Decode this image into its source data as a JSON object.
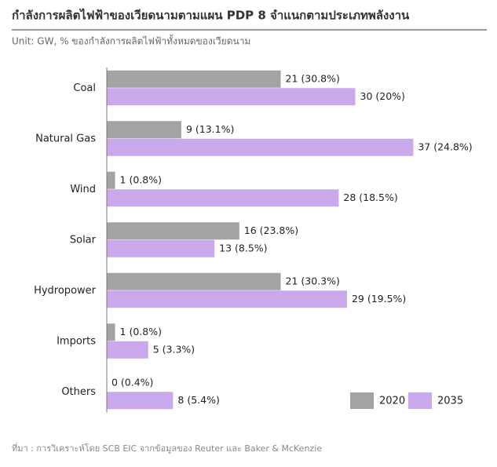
{
  "chart_data": {
    "type": "bar",
    "orientation": "horizontal",
    "title": "กำลังการผลิตไฟฟ้าของเวียดนามตามแผน PDP 8 จำแนกตามประเภทพลังงาน",
    "subtitle": "Unit: GW, % ของกำลังการผลิตไฟฟ้าทั้งหมดของเวียดนาม",
    "source": "ที่มา : การวิเคราะห์โดย SCB EIC จากข้อมูลของ Reuter และ Baker & McKenzie",
    "categories": [
      "Coal",
      "Natural Gas",
      "Wind",
      "Solar",
      "Hydropower",
      "Imports",
      "Others"
    ],
    "xlim": [
      0,
      40
    ],
    "legend": "bottom-right",
    "series": [
      {
        "name": "2020",
        "color": "#a3a3a3",
        "values": [
          21,
          9,
          1,
          16,
          21,
          1,
          0
        ],
        "value_labels": [
          "21 (30.8%)",
          "9 (13.1%)",
          "1 (0.8%)",
          "16 (23.8%)",
          "21 (30.3%)",
          "1 (0.8%)",
          "0 (0.4%)"
        ]
      },
      {
        "name": "2035",
        "color": "#c9a8ec",
        "values": [
          30,
          37,
          28,
          13,
          29,
          5,
          8
        ],
        "value_labels": [
          "30 (20%)",
          "37 (24.8%)",
          "28 (18.5%)",
          "13 (8.5%)",
          "29 (19.5%)",
          "5 (3.3%)",
          "8 (5.4%)"
        ]
      }
    ]
  }
}
